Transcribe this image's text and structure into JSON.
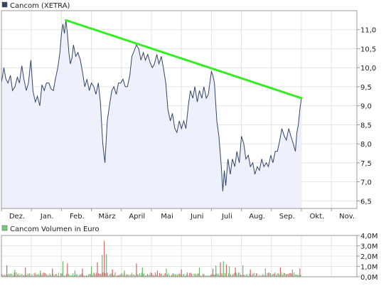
{
  "price_legend": {
    "label": "Cancom (XETRA)",
    "color": "#334466"
  },
  "volume_legend": {
    "label": "Cancom Volumen in Euro",
    "color": "#77cc77"
  },
  "colors": {
    "line": "#334466",
    "area": "#eef0fb",
    "trend": "#33ee22",
    "grid": "#e4e4e4",
    "frame": "#999999",
    "volume_up": "#cc6666",
    "volume_down": "#66bb66"
  },
  "chart_data": [
    {
      "type": "area",
      "series": [
        {
          "name": "Cancom (XETRA)"
        }
      ],
      "x_tick_labels": [
        "Dez.",
        "Jan.",
        "Feb.",
        "März",
        "April",
        "Mai",
        "Juni",
        "Juli",
        "Aug.",
        "Sep.",
        "Okt.",
        "Nov."
      ],
      "y_tick_labels": [
        "11,0",
        "10,5",
        "10,0",
        "9,5",
        "9,0",
        "8,5",
        "8,0",
        "7,5",
        "7,0",
        "6,5"
      ],
      "y_ticks": [
        11.0,
        10.5,
        10.0,
        9.5,
        9.0,
        8.5,
        8.0,
        7.5,
        7.0,
        6.5
      ],
      "ylim": [
        6.3,
        11.5
      ],
      "x_month_range": [
        0,
        11.85
      ],
      "grid": true,
      "values": [
        [
          0.0,
          9.6
        ],
        [
          0.08,
          10.0
        ],
        [
          0.15,
          9.7
        ],
        [
          0.22,
          9.6
        ],
        [
          0.3,
          9.8
        ],
        [
          0.37,
          9.4
        ],
        [
          0.45,
          9.5
        ],
        [
          0.53,
          9.75
        ],
        [
          0.6,
          9.6
        ],
        [
          0.68,
          10.05
        ],
        [
          0.75,
          9.7
        ],
        [
          0.83,
          9.4
        ],
        [
          0.9,
          9.6
        ],
        [
          0.98,
          10.2
        ],
        [
          1.05,
          9.4
        ],
        [
          1.13,
          9.1
        ],
        [
          1.2,
          9.25
        ],
        [
          1.28,
          9.0
        ],
        [
          1.35,
          9.55
        ],
        [
          1.43,
          9.4
        ],
        [
          1.5,
          9.6
        ],
        [
          1.58,
          9.6
        ],
        [
          1.65,
          9.45
        ],
        [
          1.73,
          9.4
        ],
        [
          1.8,
          9.7
        ],
        [
          1.88,
          10.0
        ],
        [
          1.95,
          10.4
        ],
        [
          2.0,
          10.9
        ],
        [
          2.05,
          11.15
        ],
        [
          2.1,
          10.9
        ],
        [
          2.15,
          11.25
        ],
        [
          2.2,
          10.9
        ],
        [
          2.25,
          10.4
        ],
        [
          2.3,
          10.1
        ],
        [
          2.35,
          10.25
        ],
        [
          2.4,
          10.6
        ],
        [
          2.48,
          10.3
        ],
        [
          2.55,
          10.4
        ],
        [
          2.63,
          10.2
        ],
        [
          2.7,
          9.9
        ],
        [
          2.78,
          9.5
        ],
        [
          2.85,
          9.7
        ],
        [
          2.93,
          9.4
        ],
        [
          3.0,
          9.6
        ],
        [
          3.08,
          9.5
        ],
        [
          3.15,
          9.3
        ],
        [
          3.23,
          9.6
        ],
        [
          3.3,
          9.1
        ],
        [
          3.38,
          8.0
        ],
        [
          3.45,
          7.5
        ],
        [
          3.53,
          8.6
        ],
        [
          3.6,
          9.0
        ],
        [
          3.68,
          9.4
        ],
        [
          3.75,
          9.5
        ],
        [
          3.83,
          9.3
        ],
        [
          3.9,
          9.6
        ],
        [
          3.98,
          9.6
        ],
        [
          4.05,
          9.7
        ],
        [
          4.13,
          9.5
        ],
        [
          4.2,
          9.5
        ],
        [
          4.28,
          9.8
        ],
        [
          4.35,
          10.3
        ],
        [
          4.43,
          10.45
        ],
        [
          4.5,
          10.6
        ],
        [
          4.58,
          10.5
        ],
        [
          4.65,
          10.2
        ],
        [
          4.73,
          10.4
        ],
        [
          4.8,
          10.2
        ],
        [
          4.88,
          10.35
        ],
        [
          4.95,
          10.15
        ],
        [
          5.03,
          10.0
        ],
        [
          5.1,
          10.1
        ],
        [
          5.18,
          10.35
        ],
        [
          5.25,
          10.1
        ],
        [
          5.33,
          10.3
        ],
        [
          5.4,
          10.0
        ],
        [
          5.48,
          9.6
        ],
        [
          5.55,
          8.9
        ],
        [
          5.63,
          8.6
        ],
        [
          5.7,
          8.8
        ],
        [
          5.78,
          8.4
        ],
        [
          5.85,
          8.3
        ],
        [
          5.93,
          8.6
        ],
        [
          6.0,
          8.4
        ],
        [
          6.08,
          8.6
        ],
        [
          6.15,
          8.4
        ],
        [
          6.23,
          9.0
        ],
        [
          6.3,
          9.4
        ],
        [
          6.38,
          9.2
        ],
        [
          6.45,
          9.5
        ],
        [
          6.53,
          9.1
        ],
        [
          6.6,
          9.4
        ],
        [
          6.68,
          9.2
        ],
        [
          6.75,
          9.5
        ],
        [
          6.83,
          9.2
        ],
        [
          6.9,
          9.3
        ],
        [
          6.95,
          9.6
        ],
        [
          7.0,
          9.9
        ],
        [
          7.05,
          9.8
        ],
        [
          7.1,
          9.6
        ],
        [
          7.18,
          8.6
        ],
        [
          7.25,
          8.2
        ],
        [
          7.33,
          7.4
        ],
        [
          7.38,
          6.75
        ],
        [
          7.43,
          7.3
        ],
        [
          7.48,
          6.9
        ],
        [
          7.55,
          7.6
        ],
        [
          7.63,
          7.2
        ],
        [
          7.7,
          7.6
        ],
        [
          7.78,
          7.4
        ],
        [
          7.85,
          7.8
        ],
        [
          7.93,
          7.5
        ],
        [
          8.0,
          8.2
        ],
        [
          8.08,
          8.0
        ],
        [
          8.15,
          7.6
        ],
        [
          8.23,
          7.7
        ],
        [
          8.3,
          7.4
        ],
        [
          8.38,
          7.5
        ],
        [
          8.45,
          7.2
        ],
        [
          8.53,
          7.4
        ],
        [
          8.6,
          7.3
        ],
        [
          8.68,
          7.6
        ],
        [
          8.75,
          7.4
        ],
        [
          8.83,
          7.5
        ],
        [
          8.9,
          7.4
        ],
        [
          8.98,
          7.7
        ],
        [
          9.05,
          7.5
        ],
        [
          9.13,
          7.8
        ],
        [
          9.2,
          7.8
        ],
        [
          9.28,
          8.1
        ],
        [
          9.35,
          8.4
        ],
        [
          9.43,
          8.2
        ],
        [
          9.5,
          8.1
        ],
        [
          9.58,
          8.4
        ],
        [
          9.65,
          8.2
        ],
        [
          9.73,
          8.0
        ],
        [
          9.8,
          7.8
        ],
        [
          9.85,
          8.3
        ],
        [
          9.9,
          8.5
        ],
        [
          9.95,
          8.9
        ],
        [
          10.0,
          9.2
        ]
      ]
    },
    {
      "type": "bar",
      "series": [
        {
          "name": "Cancom Volumen in Euro"
        }
      ],
      "y_tick_labels": [
        "4,0M",
        "3,0M",
        "2,0M",
        "1,0M",
        "0,0M"
      ],
      "y_ticks": [
        4.0,
        3.0,
        2.0,
        1.0,
        0.0
      ],
      "ylim": [
        0,
        4.0
      ],
      "grid": true,
      "spikes": [
        [
          0.18,
          1.1
        ],
        [
          0.45,
          0.7
        ],
        [
          0.8,
          0.9
        ],
        [
          1.3,
          0.6
        ],
        [
          1.7,
          0.8
        ],
        [
          2.05,
          1.5
        ],
        [
          2.2,
          1.3
        ],
        [
          2.45,
          0.6
        ],
        [
          2.7,
          0.8
        ],
        [
          3.0,
          1.0
        ],
        [
          3.2,
          1.4
        ],
        [
          3.36,
          2.1
        ],
        [
          3.43,
          3.5
        ],
        [
          3.5,
          2.2
        ],
        [
          3.7,
          0.7
        ],
        [
          4.1,
          0.6
        ],
        [
          4.5,
          1.3
        ],
        [
          4.7,
          0.9
        ],
        [
          5.2,
          0.6
        ],
        [
          5.5,
          0.8
        ],
        [
          6.0,
          0.7
        ],
        [
          6.6,
          0.9
        ],
        [
          7.05,
          0.8
        ],
        [
          7.15,
          1.1
        ],
        [
          7.3,
          1.4
        ],
        [
          7.4,
          1.5
        ],
        [
          7.5,
          1.2
        ],
        [
          7.6,
          1.0
        ],
        [
          7.8,
          0.9
        ],
        [
          8.05,
          1.1
        ],
        [
          8.3,
          0.7
        ],
        [
          8.8,
          0.8
        ],
        [
          9.3,
          0.9
        ],
        [
          9.7,
          0.7
        ],
        [
          9.95,
          0.8
        ]
      ]
    }
  ]
}
